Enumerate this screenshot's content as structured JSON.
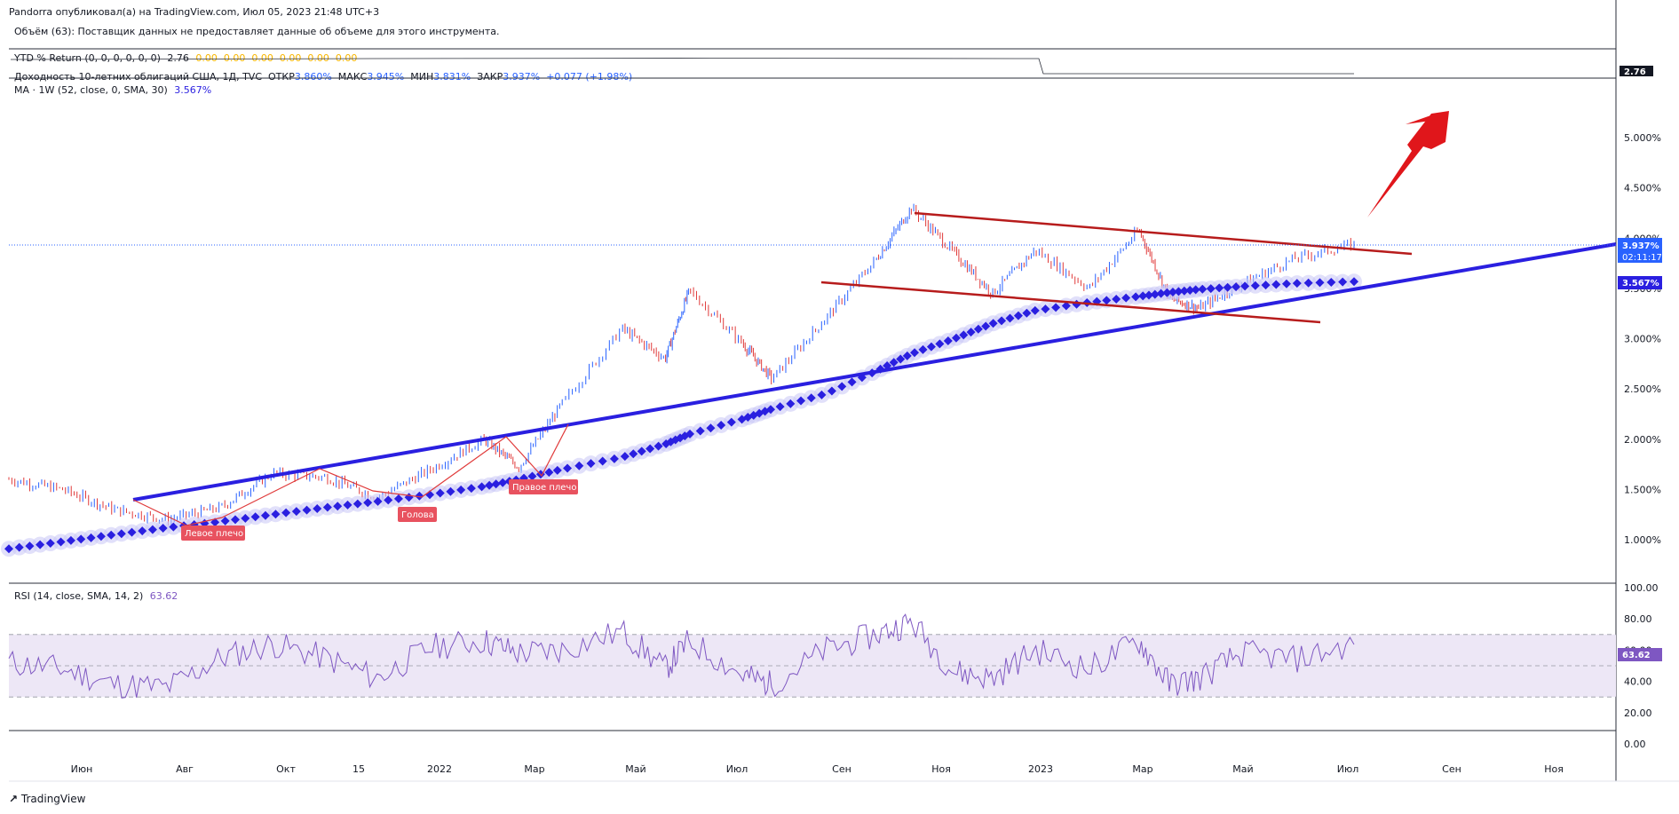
{
  "header": {
    "publisher_line": "Pandorra опубликовал(а) на TradingView.com, Июл 05, 2023 21:48 UTC+3"
  },
  "volume_pane": {
    "text": "Объём (63): Поставщик данных не предоставляет данные об объеме для этого инструмента."
  },
  "ytd_pane": {
    "label": "YTD % Return (0, 0, 0, 0, 0, 0)",
    "value": "2.76",
    "zeros": "0.00  0.00  0.00  0.00  0.00  0.00",
    "axis_tag": "2.76",
    "line_color": "#2a2e39"
  },
  "main_pane": {
    "title": "Доходность 10-летних облигаций США, 1Д, TVC",
    "open_label": "ОТКР",
    "open_value": "3.860%",
    "high_label": "МАКС",
    "high_value": "3.945%",
    "low_label": "МИН",
    "low_value": "3.831%",
    "close_label": "ЗАКР",
    "close_value": "3.937%",
    "change": "+0.077 (+1.98%)",
    "ma_label": "MA · 1W (52, close, 0, SMA, 30)",
    "ma_value": "3.567%",
    "price_tag": "3.937%",
    "countdown": "02:11:17",
    "ma_tag": "3.567%",
    "colors": {
      "up": "#2962ff",
      "down": "#e03a3a",
      "ma": "#2a1fe0",
      "trend": "#b71c1c",
      "arrow": "#e0161b"
    }
  },
  "annotations": {
    "left_shoulder": "Левое плечо",
    "head": "Голова",
    "right_shoulder": "Правое плечо"
  },
  "rsi_pane": {
    "label": "RSI (14, close, SMA, 14, 2)",
    "value": "63.62",
    "axis_tag": "63.62",
    "band_color": "#ede7f6",
    "line_color": "#7e57c2"
  },
  "x_axis": [
    "Июн",
    "Авг",
    "Окт",
    "15",
    "2022",
    "Мар",
    "Май",
    "Июл",
    "Сен",
    "Ноя",
    "2023",
    "Мар",
    "Май",
    "Июл",
    "Сен",
    "Ноя"
  ],
  "footer": {
    "brand": "TradingView"
  },
  "chart_data": [
    {
      "type": "line",
      "title": "Доходность 10-летних облигаций США, 1Д, TVC",
      "ylabel": "%",
      "y_ticks": [
        "1.000%",
        "1.500%",
        "2.000%",
        "2.500%",
        "3.000%",
        "3.500%",
        "4.000%",
        "4.500%",
        "5.000%"
      ],
      "ylim": [
        0.75,
        5.6
      ],
      "x": [
        "2021-05-15",
        "2021-06-15",
        "2021-07-15",
        "2021-08-15",
        "2021-09-15",
        "2021-10-15",
        "2021-11-15",
        "2021-12-15",
        "2022-01-15",
        "2022-02-15",
        "2022-03-07",
        "2022-04-01",
        "2022-05-06",
        "2022-05-31",
        "2022-06-14",
        "2022-07-15",
        "2022-08-01",
        "2022-09-01",
        "2022-10-01",
        "2022-10-21",
        "2022-11-15",
        "2022-12-07",
        "2023-01-01",
        "2023-02-01",
        "2023-03-02",
        "2023-03-20",
        "2023-04-06",
        "2023-05-01",
        "2023-06-01",
        "2023-07-05"
      ],
      "series": [
        {
          "values": [
            1.6,
            1.5,
            1.3,
            1.2,
            1.32,
            1.66,
            1.62,
            1.42,
            1.7,
            2.0,
            1.72,
            2.35,
            3.1,
            2.8,
            3.48,
            2.95,
            2.6,
            3.2,
            3.8,
            4.3,
            3.85,
            3.45,
            3.88,
            3.5,
            4.08,
            3.4,
            3.3,
            3.55,
            3.8,
            3.937
          ]
        },
        {
          "name": "MA · 1W (52, close, 0, SMA, 30)",
          "values": [
            0.91,
            0.98,
            1.05,
            1.12,
            1.18,
            1.25,
            1.32,
            1.38,
            1.45,
            1.53,
            1.6,
            1.7,
            1.82,
            1.95,
            2.05,
            2.2,
            2.3,
            2.45,
            2.68,
            2.85,
            3.0,
            3.15,
            3.28,
            3.36,
            3.42,
            3.46,
            3.49,
            3.52,
            3.55,
            3.567
          ]
        }
      ],
      "price_tag": "3.937%",
      "ma_tag": "3.567%"
    },
    {
      "type": "line",
      "title": "RSI (14, close, SMA, 14, 2)",
      "y_ticks": [
        "100.00",
        "80.00",
        "60.00",
        "40.00",
        "20.00",
        "0.00"
      ],
      "ylim": [
        0,
        100
      ],
      "band": [
        30,
        70
      ],
      "mid": 50,
      "x": [
        "2021-05-15",
        "2021-06-15",
        "2021-07-15",
        "2021-08-15",
        "2021-09-15",
        "2021-10-15",
        "2021-11-15",
        "2021-12-15",
        "2022-01-15",
        "2022-02-15",
        "2022-03-07",
        "2022-04-01",
        "2022-05-06",
        "2022-05-31",
        "2022-06-14",
        "2022-07-15",
        "2022-08-01",
        "2022-09-01",
        "2022-10-01",
        "2022-10-21",
        "2022-11-15",
        "2022-12-07",
        "2023-01-01",
        "2023-02-01",
        "2023-03-02",
        "2023-03-20",
        "2023-04-06",
        "2023-05-01",
        "2023-06-01",
        "2023-07-05"
      ],
      "values": [
        52,
        48,
        38,
        36,
        55,
        64,
        55,
        42,
        62,
        66,
        58,
        60,
        72,
        48,
        66,
        44,
        38,
        60,
        70,
        78,
        46,
        42,
        60,
        48,
        66,
        38,
        42,
        58,
        54,
        63.62
      ]
    }
  ]
}
